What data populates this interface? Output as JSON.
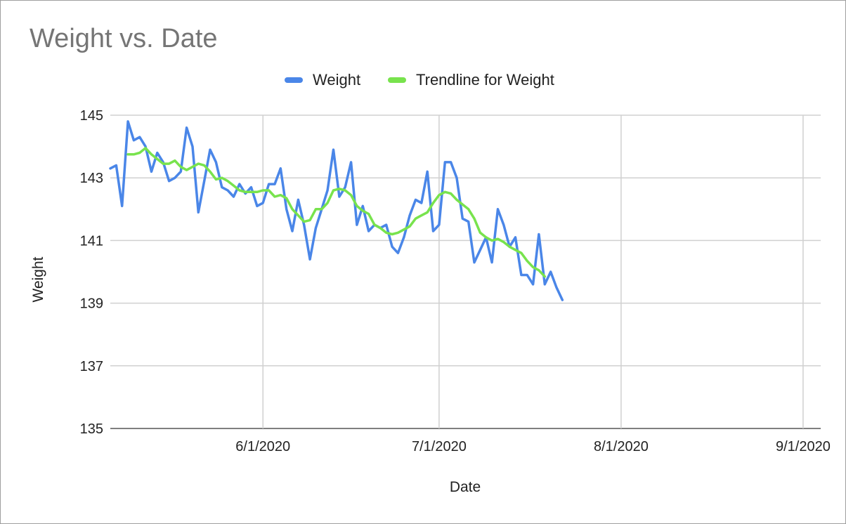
{
  "chart_data": {
    "type": "line",
    "title": "Weight vs. Date",
    "xlabel": "Date",
    "ylabel": "Weight",
    "ylim": [
      135,
      145
    ],
    "xlim": [
      "2020-05-06",
      "2020-09-04"
    ],
    "y_ticks": [
      135,
      137,
      139,
      141,
      143,
      145
    ],
    "x_ticks": [
      {
        "date": "2020-06-01",
        "label": "6/1/2020"
      },
      {
        "date": "2020-07-01",
        "label": "7/1/2020"
      },
      {
        "date": "2020-08-01",
        "label": "8/1/2020"
      },
      {
        "date": "2020-09-01",
        "label": "9/1/2020"
      }
    ],
    "grid": true,
    "legend_position": "top-center",
    "series": [
      {
        "name": "Weight",
        "color": "#4a86e8",
        "points": [
          [
            "2020-05-06",
            143.3
          ],
          [
            "2020-05-07",
            143.4
          ],
          [
            "2020-05-08",
            142.1
          ],
          [
            "2020-05-09",
            144.8
          ],
          [
            "2020-05-10",
            144.2
          ],
          [
            "2020-05-11",
            144.3
          ],
          [
            "2020-05-12",
            144.0
          ],
          [
            "2020-05-13",
            143.2
          ],
          [
            "2020-05-14",
            143.8
          ],
          [
            "2020-05-15",
            143.5
          ],
          [
            "2020-05-16",
            142.9
          ],
          [
            "2020-05-17",
            143.0
          ],
          [
            "2020-05-18",
            143.2
          ],
          [
            "2020-05-19",
            144.6
          ],
          [
            "2020-05-20",
            144.0
          ],
          [
            "2020-05-21",
            141.9
          ],
          [
            "2020-05-22",
            142.9
          ],
          [
            "2020-05-23",
            143.9
          ],
          [
            "2020-05-24",
            143.5
          ],
          [
            "2020-05-25",
            142.7
          ],
          [
            "2020-05-26",
            142.6
          ],
          [
            "2020-05-27",
            142.4
          ],
          [
            "2020-05-28",
            142.8
          ],
          [
            "2020-05-29",
            142.5
          ],
          [
            "2020-05-30",
            142.7
          ],
          [
            "2020-05-31",
            142.1
          ],
          [
            "2020-06-01",
            142.2
          ],
          [
            "2020-06-02",
            142.8
          ],
          [
            "2020-06-03",
            142.8
          ],
          [
            "2020-06-04",
            143.3
          ],
          [
            "2020-06-05",
            142.0
          ],
          [
            "2020-06-06",
            141.3
          ],
          [
            "2020-06-07",
            142.3
          ],
          [
            "2020-06-08",
            141.5
          ],
          [
            "2020-06-09",
            140.4
          ],
          [
            "2020-06-10",
            141.4
          ],
          [
            "2020-06-11",
            142.0
          ],
          [
            "2020-06-12",
            142.6
          ],
          [
            "2020-06-13",
            143.9
          ],
          [
            "2020-06-14",
            142.4
          ],
          [
            "2020-06-15",
            142.7
          ],
          [
            "2020-06-16",
            143.5
          ],
          [
            "2020-06-17",
            141.5
          ],
          [
            "2020-06-18",
            142.1
          ],
          [
            "2020-06-19",
            141.3
          ],
          [
            "2020-06-20",
            141.5
          ],
          [
            "2020-06-21",
            141.4
          ],
          [
            "2020-06-22",
            141.5
          ],
          [
            "2020-06-23",
            140.8
          ],
          [
            "2020-06-24",
            140.6
          ],
          [
            "2020-06-25",
            141.1
          ],
          [
            "2020-06-26",
            141.8
          ],
          [
            "2020-06-27",
            142.3
          ],
          [
            "2020-06-28",
            142.2
          ],
          [
            "2020-06-29",
            143.2
          ],
          [
            "2020-06-30",
            141.3
          ],
          [
            "2020-07-01",
            141.5
          ],
          [
            "2020-07-02",
            143.5
          ],
          [
            "2020-07-03",
            143.5
          ],
          [
            "2020-07-04",
            143.0
          ],
          [
            "2020-07-05",
            141.7
          ],
          [
            "2020-07-06",
            141.6
          ],
          [
            "2020-07-07",
            140.3
          ],
          [
            "2020-07-08",
            140.7
          ],
          [
            "2020-07-09",
            141.1
          ],
          [
            "2020-07-10",
            140.3
          ],
          [
            "2020-07-11",
            142.0
          ],
          [
            "2020-07-12",
            141.5
          ],
          [
            "2020-07-13",
            140.8
          ],
          [
            "2020-07-14",
            141.1
          ],
          [
            "2020-07-15",
            139.9
          ],
          [
            "2020-07-16",
            139.9
          ],
          [
            "2020-07-17",
            139.6
          ],
          [
            "2020-07-18",
            141.2
          ],
          [
            "2020-07-19",
            139.6
          ],
          [
            "2020-07-20",
            140.0
          ],
          [
            "2020-07-21",
            139.5
          ],
          [
            "2020-07-22",
            139.1
          ]
        ]
      },
      {
        "name": "Trendline for Weight",
        "color": "#78e34d",
        "points": [
          [
            "2020-05-09",
            143.75
          ],
          [
            "2020-05-10",
            143.75
          ],
          [
            "2020-05-11",
            143.8
          ],
          [
            "2020-05-12",
            143.95
          ],
          [
            "2020-05-13",
            143.75
          ],
          [
            "2020-05-14",
            143.6
          ],
          [
            "2020-05-15",
            143.45
          ],
          [
            "2020-05-16",
            143.45
          ],
          [
            "2020-05-17",
            143.55
          ],
          [
            "2020-05-18",
            143.35
          ],
          [
            "2020-05-19",
            143.25
          ],
          [
            "2020-05-20",
            143.35
          ],
          [
            "2020-05-21",
            143.45
          ],
          [
            "2020-05-22",
            143.4
          ],
          [
            "2020-05-23",
            143.2
          ],
          [
            "2020-05-24",
            142.95
          ],
          [
            "2020-05-25",
            143.0
          ],
          [
            "2020-05-26",
            142.9
          ],
          [
            "2020-05-27",
            142.75
          ],
          [
            "2020-05-28",
            142.6
          ],
          [
            "2020-05-29",
            142.55
          ],
          [
            "2020-05-30",
            142.55
          ],
          [
            "2020-05-31",
            142.55
          ],
          [
            "2020-06-01",
            142.6
          ],
          [
            "2020-06-02",
            142.6
          ],
          [
            "2020-06-03",
            142.4
          ],
          [
            "2020-06-04",
            142.45
          ],
          [
            "2020-06-05",
            142.35
          ],
          [
            "2020-06-06",
            142.0
          ],
          [
            "2020-06-07",
            141.8
          ],
          [
            "2020-06-08",
            141.6
          ],
          [
            "2020-06-09",
            141.65
          ],
          [
            "2020-06-10",
            142.0
          ],
          [
            "2020-06-11",
            142.0
          ],
          [
            "2020-06-12",
            142.2
          ],
          [
            "2020-06-13",
            142.6
          ],
          [
            "2020-06-14",
            142.65
          ],
          [
            "2020-06-15",
            142.6
          ],
          [
            "2020-06-16",
            142.45
          ],
          [
            "2020-06-17",
            142.1
          ],
          [
            "2020-06-18",
            141.95
          ],
          [
            "2020-06-19",
            141.85
          ],
          [
            "2020-06-20",
            141.5
          ],
          [
            "2020-06-21",
            141.4
          ],
          [
            "2020-06-22",
            141.25
          ],
          [
            "2020-06-23",
            141.2
          ],
          [
            "2020-06-24",
            141.25
          ],
          [
            "2020-06-25",
            141.35
          ],
          [
            "2020-06-26",
            141.45
          ],
          [
            "2020-06-27",
            141.7
          ],
          [
            "2020-06-28",
            141.8
          ],
          [
            "2020-06-29",
            141.9
          ],
          [
            "2020-06-30",
            142.2
          ],
          [
            "2020-07-01",
            142.45
          ],
          [
            "2020-07-02",
            142.55
          ],
          [
            "2020-07-03",
            142.5
          ],
          [
            "2020-07-04",
            142.3
          ],
          [
            "2020-07-05",
            142.15
          ],
          [
            "2020-07-06",
            142.0
          ],
          [
            "2020-07-07",
            141.7
          ],
          [
            "2020-07-08",
            141.25
          ],
          [
            "2020-07-09",
            141.1
          ],
          [
            "2020-07-10",
            141.0
          ],
          [
            "2020-07-11",
            141.05
          ],
          [
            "2020-07-12",
            140.95
          ],
          [
            "2020-07-13",
            140.8
          ],
          [
            "2020-07-14",
            140.7
          ],
          [
            "2020-07-15",
            140.6
          ],
          [
            "2020-07-16",
            140.35
          ],
          [
            "2020-07-17",
            140.15
          ],
          [
            "2020-07-18",
            140.05
          ],
          [
            "2020-07-19",
            139.85
          ]
        ]
      }
    ]
  }
}
